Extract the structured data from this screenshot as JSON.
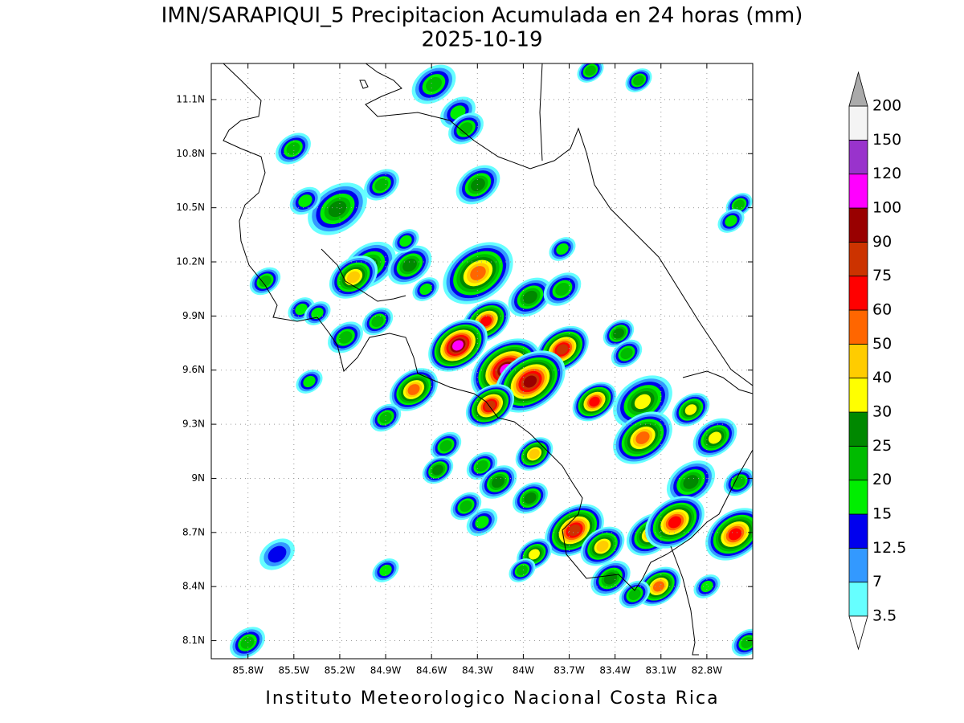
{
  "map": {
    "title": "IMN/SARAPIQUI_5 Precipitacion Acumulada en 24 horas (mm)",
    "subtitle": "2025-10-19",
    "footer": "Instituto Meteorologico Nacional Costa Rica",
    "xlim": [
      -86.04,
      -82.5
    ],
    "ylim": [
      8.0,
      11.3
    ],
    "grid": true,
    "xticks": [
      {
        "value": -85.8,
        "label": "85.8W"
      },
      {
        "value": -85.5,
        "label": "85.5W"
      },
      {
        "value": -85.2,
        "label": "85.2W"
      },
      {
        "value": -84.9,
        "label": "84.9W"
      },
      {
        "value": -84.6,
        "label": "84.6W"
      },
      {
        "value": -84.3,
        "label": "84.3W"
      },
      {
        "value": -84.0,
        "label": "84W"
      },
      {
        "value": -83.7,
        "label": "83.7W"
      },
      {
        "value": -83.4,
        "label": "83.4W"
      },
      {
        "value": -83.1,
        "label": "83.1W"
      },
      {
        "value": -82.8,
        "label": "82.8W"
      }
    ],
    "yticks": [
      {
        "value": 11.1,
        "label": "11.1N"
      },
      {
        "value": 10.8,
        "label": "10.8N"
      },
      {
        "value": 10.5,
        "label": "10.5N"
      },
      {
        "value": 10.2,
        "label": "10.2N"
      },
      {
        "value": 9.9,
        "label": "9.9N"
      },
      {
        "value": 9.6,
        "label": "9.6N"
      },
      {
        "value": 9.3,
        "label": "9.3N"
      },
      {
        "value": 9.0,
        "label": "9N"
      },
      {
        "value": 8.7,
        "label": "8.7N"
      },
      {
        "value": 8.4,
        "label": "8.4N"
      },
      {
        "value": 8.1,
        "label": "8.1N"
      }
    ],
    "colorbar": {
      "levels": [
        3.5,
        7,
        12.5,
        15,
        20,
        25,
        30,
        40,
        50,
        60,
        75,
        90,
        100,
        120,
        150,
        200
      ],
      "colors": [
        "#66ffff",
        "#3399ff",
        "#0000ee",
        "#00ee00",
        "#00bb00",
        "#008800",
        "#ffff00",
        "#ffcc00",
        "#ff6600",
        "#ff0000",
        "#cc3300",
        "#990000",
        "#ff00ff",
        "#9933cc",
        "#f4f4f4"
      ],
      "under_color": "#ffffff",
      "over_color": "#aaaaaa"
    }
  }
}
